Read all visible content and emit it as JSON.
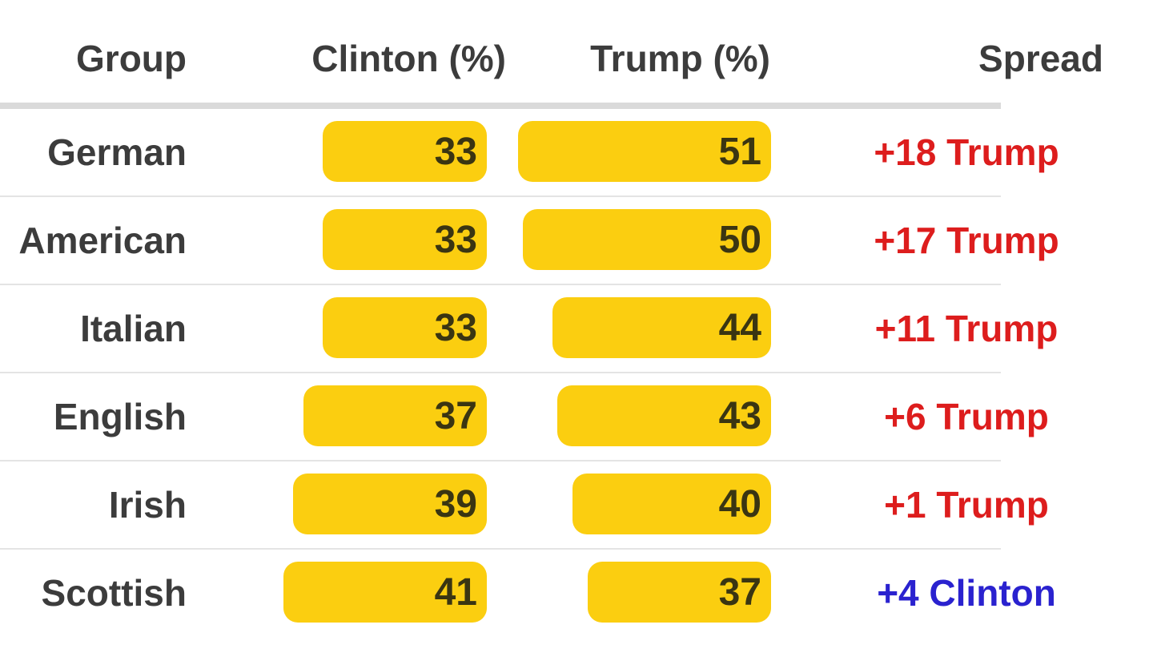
{
  "table": {
    "columns": {
      "group": "Group",
      "clinton": "Clinton (%)",
      "trump": "Trump (%)",
      "spread": "Spread"
    },
    "rows": [
      {
        "group": "German",
        "clinton": 33,
        "trump": 51,
        "spread": "+18 Trump",
        "spread_color": "#dd1d1d"
      },
      {
        "group": "American",
        "clinton": 33,
        "trump": 50,
        "spread": "+17 Trump",
        "spread_color": "#dd1d1d"
      },
      {
        "group": "Italian",
        "clinton": 33,
        "trump": 44,
        "spread": "+11 Trump",
        "spread_color": "#dd1d1d"
      },
      {
        "group": "English",
        "clinton": 37,
        "trump": 43,
        "spread": "+6 Trump",
        "spread_color": "#dd1d1d"
      },
      {
        "group": "Irish",
        "clinton": 39,
        "trump": 40,
        "spread": "+1 Trump",
        "spread_color": "#dd1d1d"
      },
      {
        "group": "Scottish",
        "clinton": 41,
        "trump": 37,
        "spread": "+4 Clinton",
        "spread_color": "#2a22cf"
      }
    ]
  },
  "colors": {
    "bar_fill": "#fbce10",
    "bar_value_text": "#3a3512",
    "label_text": "#3c3c3c",
    "trump_spread_red": "#dd1d1d",
    "clinton_spread_blue": "#2a22cf",
    "header_divider": "#dadada",
    "row_divider": "#e4e4e4"
  },
  "chart_data": {
    "type": "bar",
    "orientation": "horizontal",
    "title": "",
    "xlabel": "",
    "ylabel": "Group",
    "categories": [
      "German",
      "American",
      "Italian",
      "English",
      "Irish",
      "Scottish"
    ],
    "series": [
      {
        "name": "Clinton (%)",
        "values": [
          33,
          33,
          33,
          37,
          39,
          41
        ]
      },
      {
        "name": "Trump (%)",
        "values": [
          51,
          50,
          44,
          43,
          40,
          37
        ]
      }
    ],
    "spread_labels": [
      "+18 Trump",
      "+17 Trump",
      "+11 Trump",
      "+6 Trump",
      "+1 Trump",
      "+4 Clinton"
    ],
    "value_range": [
      0,
      55
    ],
    "grid": false,
    "legend_position": "column-headers",
    "value_labels": "inside-bar-right"
  }
}
